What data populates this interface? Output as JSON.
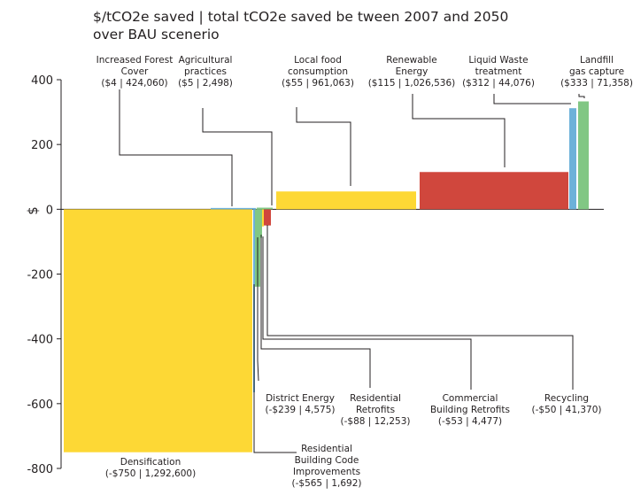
{
  "chart_data": {
    "type": "bar",
    "subtype": "variable-width marginal abatement cost curve",
    "title_lines": [
      "$/tCO2e saved | total tCO2e saved be tween 2007 and 2050",
      "over BAU scenerio"
    ],
    "ylabel": "$",
    "ylim": [
      -800,
      400
    ],
    "yticks": [
      400,
      200,
      0,
      -200,
      -400,
      -600,
      -800
    ],
    "grid": false,
    "legend": "none",
    "bars": [
      {
        "name_lines": [
          "Densification"
        ],
        "value_label": "(-$750 | 1,292,600)",
        "cost": -750,
        "tco2e": 1292600,
        "color": "#fdd835"
      },
      {
        "name_lines": [
          "Residential",
          "Building Code",
          "Improvements"
        ],
        "value_label": "(-$565 | 1,692)",
        "cost": -565,
        "tco2e": 1692,
        "color": "#6db1d9"
      },
      {
        "name_lines": [
          "District Energy"
        ],
        "value_label": "(-$239 | 4,575)",
        "cost": -239,
        "tco2e": 4575,
        "color": "#81c784"
      },
      {
        "name_lines": [
          "Residential",
          "Retrofits"
        ],
        "value_label": "(-$88 | 12,253)",
        "cost": -88,
        "tco2e": 12253,
        "color": "#81c784"
      },
      {
        "name_lines": [
          "Commercial",
          "Building Retrofits"
        ],
        "value_label": "(-$53 | 4,477)",
        "cost": -53,
        "tco2e": 4477,
        "color": "#fdd835"
      },
      {
        "name_lines": [
          "Recycling"
        ],
        "value_label": "(-$50 | 41,370)",
        "cost": -50,
        "tco2e": 41370,
        "color": "#d0473d"
      },
      {
        "name_lines": [
          "Increased Forest",
          "Cover"
        ],
        "value_label": "($4 | 424,060)",
        "cost": 4,
        "tco2e": 424060,
        "color": "#6db1d9"
      },
      {
        "name_lines": [
          "Agricultural",
          "practices"
        ],
        "value_label": "($5 | 2,498)",
        "cost": 5,
        "tco2e": 2498,
        "color": "#81c784"
      },
      {
        "name_lines": [
          "Local food",
          "consumption"
        ],
        "value_label": "($55 | 961,063)",
        "cost": 55,
        "tco2e": 961063,
        "color": "#fdd835"
      },
      {
        "name_lines": [
          "Renewable",
          "Energy"
        ],
        "value_label": "($115 | 1,026,536)",
        "cost": 115,
        "tco2e": 1026536,
        "color": "#d0473d"
      },
      {
        "name_lines": [
          "Liquid Waste",
          "treatment"
        ],
        "value_label": "($312 | 44,076)",
        "cost": 312,
        "tco2e": 44076,
        "color": "#6db1d9"
      },
      {
        "name_lines": [
          "Landfill",
          "gas capture"
        ],
        "value_label": "($333 | 71,358)",
        "cost": 333,
        "tco2e": 71358,
        "color": "#81c784"
      }
    ]
  }
}
